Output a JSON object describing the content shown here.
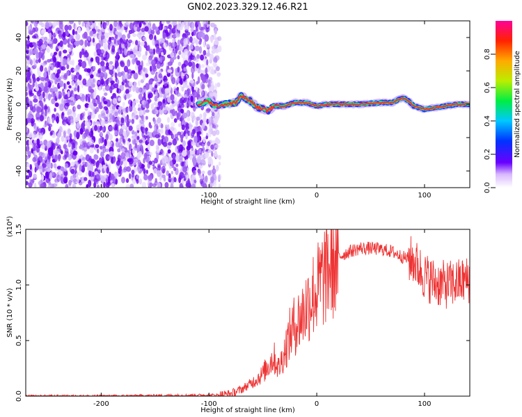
{
  "title": "GN02.2023.329.12.46.R21",
  "colors": {
    "signal_line": "#ee3333",
    "noise_dots": "#7a22ee",
    "background": "#ffffff"
  },
  "chart_data": [
    {
      "type": "heatmap",
      "title": "GN02.2023.329.12.46.R21",
      "xlabel": "Height of straight line (km)",
      "ylabel": "Frequency (Hz)",
      "xlim": [
        -270,
        142
      ],
      "ylim": [
        -50,
        50
      ],
      "xticks": [
        -200,
        -100,
        0,
        100
      ],
      "yticks": [
        -40,
        -20,
        0,
        20,
        40
      ],
      "noise_region_x": [
        -270,
        -90
      ],
      "ridge": {
        "x": [
          -110,
          -100,
          -95,
          -85,
          -75,
          -70,
          -62,
          -55,
          -48,
          -45,
          -40,
          -30,
          -20,
          -10,
          0,
          10,
          20,
          40,
          60,
          70,
          80,
          85,
          90,
          95,
          100,
          110,
          120,
          130,
          142
        ],
        "frequency": [
          0,
          2,
          -1,
          0,
          1,
          5,
          2,
          -2,
          -3,
          -4,
          -1,
          -1,
          1,
          1,
          -1,
          0,
          0,
          0,
          1,
          1,
          4,
          2,
          -1,
          -2,
          -3,
          -2,
          -1,
          0,
          0
        ]
      },
      "colorbar": {
        "label": "Normalized spectral amplitude",
        "ticks": [
          "0.0",
          "0.2",
          "0.4",
          "0.6",
          "0.8"
        ],
        "range": [
          0,
          1
        ]
      }
    },
    {
      "type": "line",
      "xlabel": "Height of straight line (km)",
      "ylabel": "SNR (10 * v/v)",
      "multiplier_label": "(x10⁴)",
      "xlim": [
        -270,
        142
      ],
      "ylim": [
        0,
        1.5
      ],
      "xticks": [
        -200,
        -100,
        0,
        100
      ],
      "yticks": [
        "0.0",
        "0.5",
        "1.0",
        "1.5"
      ],
      "series": [
        {
          "x": [
            -270,
            -200,
            -150,
            -100,
            -90,
            -80,
            -70,
            -60,
            -50,
            -45,
            -40,
            -35,
            -30,
            -25,
            -20,
            -15,
            -10,
            -5,
            0,
            5,
            10,
            15,
            20,
            30,
            40,
            50,
            60,
            70,
            80,
            90,
            95,
            100,
            110,
            120,
            130,
            142
          ],
          "values": [
            0.0,
            0.0,
            0.005,
            0.01,
            0.01,
            0.02,
            0.06,
            0.12,
            0.2,
            0.28,
            0.35,
            0.25,
            0.4,
            0.55,
            0.65,
            0.7,
            0.8,
            0.9,
            0.95,
            1.05,
            1.15,
            1.2,
            1.25,
            1.3,
            1.33,
            1.33,
            1.32,
            1.3,
            1.25,
            1.22,
            1.15,
            1.08,
            1.02,
            1.0,
            1.02,
            1.05
          ]
        }
      ]
    }
  ]
}
